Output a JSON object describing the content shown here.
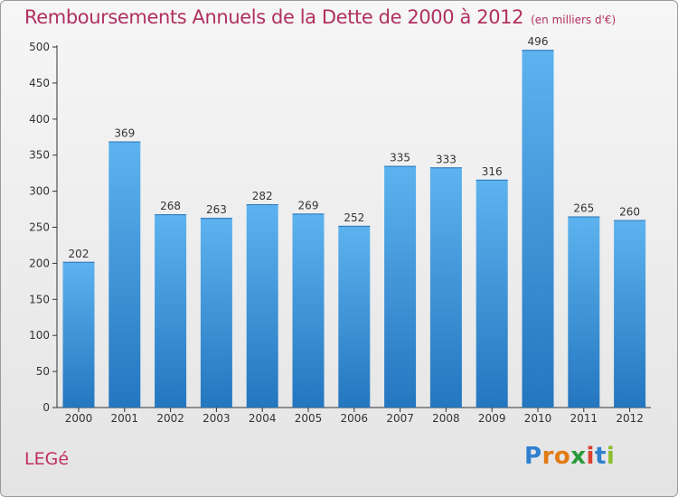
{
  "header": {
    "title": "Remboursements Annuels de la Dette de 2000 à 2012",
    "unit": "(en milliers d'€)"
  },
  "footer": {
    "commune": "LEGé",
    "logo_letters": [
      "P",
      "r",
      "o",
      "x",
      "i",
      "t",
      "i"
    ]
  },
  "colors": {
    "title": "#b03060",
    "bar_top": "#5db3ef",
    "bar_bottom": "#2476bf",
    "axis": "#333333"
  },
  "chart_data": {
    "type": "bar",
    "title": "Remboursements Annuels de la Dette de 2000 à 2012",
    "subtitle": "(en milliers d'€)",
    "xlabel": "",
    "ylabel": "",
    "categories": [
      "2000",
      "2001",
      "2002",
      "2003",
      "2004",
      "2005",
      "2006",
      "2007",
      "2008",
      "2009",
      "2010",
      "2011",
      "2012"
    ],
    "values": [
      202,
      369,
      268,
      263,
      282,
      269,
      252,
      335,
      333,
      316,
      496,
      265,
      260
    ],
    "ylim": [
      0,
      500
    ],
    "yticks": [
      0,
      50,
      100,
      150,
      200,
      250,
      300,
      350,
      400,
      450,
      500
    ],
    "ytick_labels": [
      "0",
      "50",
      "100",
      "150",
      "200",
      "250",
      "300",
      "350",
      "400",
      "450",
      "500"
    ],
    "grid": false,
    "legend": "none"
  }
}
